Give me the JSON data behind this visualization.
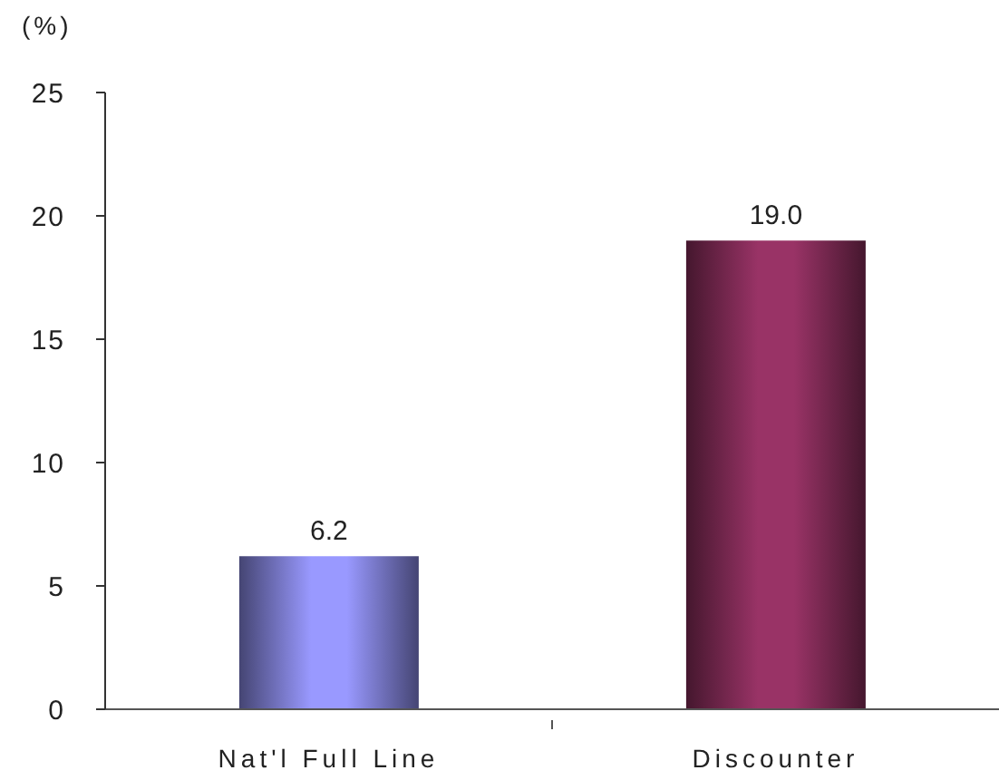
{
  "chart_data": {
    "type": "bar",
    "ylabel": "(%)",
    "categories": [
      "Nat'l Full Line",
      "Discounter"
    ],
    "values": [
      6.2,
      19.0
    ],
    "colors": [
      "#9999ff",
      "#993366"
    ],
    "value_labels": [
      "6.2",
      "19.0"
    ],
    "ylim": [
      0,
      25
    ],
    "yticks": [
      0,
      5,
      10,
      15,
      20,
      25
    ],
    "legend": false
  }
}
